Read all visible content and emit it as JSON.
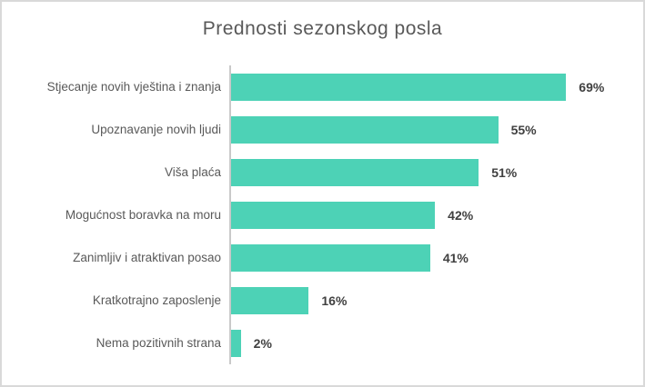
{
  "frame": {
    "background_color": "#ffffff",
    "border_color": "#d9d9d9"
  },
  "chart_data": {
    "type": "bar",
    "orientation": "horizontal",
    "title": "Prednosti sezonskog posla",
    "categories": [
      "Stjecanje novih vještina i znanja",
      "Upoznavanje novih ljudi",
      "Viša plaća",
      "Mogućnost boravka na moru",
      "Zanimljiv i atraktivan posao",
      "Kratkotrajno zaposlenje",
      "Nema pozitivnih strana"
    ],
    "values": [
      69,
      55,
      51,
      42,
      41,
      16,
      2
    ],
    "value_labels": [
      "69%",
      "55%",
      "51%",
      "42%",
      "41%",
      "16%",
      "2%"
    ],
    "xlabel": "",
    "ylabel": "",
    "axis_max": 80,
    "grid": false,
    "legend": false,
    "data_labels": true,
    "bar_color": "#4dd2b6",
    "title_color": "#595959",
    "category_label_color": "#595959",
    "value_label_color": "#404040",
    "axis_line_color": "#c9c9c9"
  }
}
